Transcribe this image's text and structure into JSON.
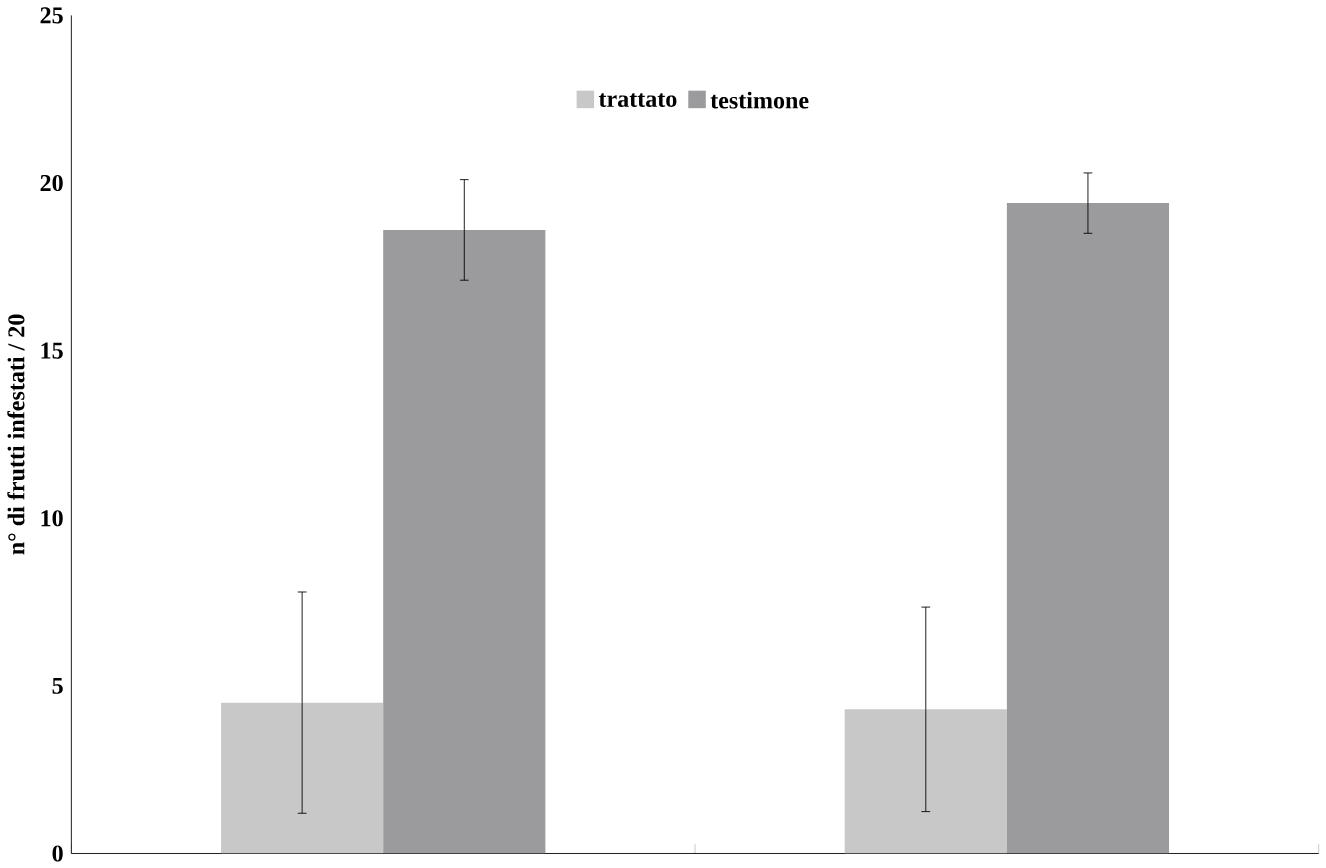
{
  "chart_data": {
    "type": "bar",
    "ylabel": "n° di frutti infestati / 20",
    "categories": [
      null,
      null
    ],
    "series": [
      {
        "name": "trattato",
        "color": "#c8c8c8",
        "values": [
          4.5,
          4.3
        ],
        "errors": [
          3.3,
          3.05
        ]
      },
      {
        "name": "testimone",
        "color": "#9b9b9d",
        "values": [
          18.6,
          19.4
        ],
        "errors": [
          1.5,
          0.9
        ]
      }
    ],
    "ylim": [
      0,
      25
    ],
    "yticks": [
      0,
      5,
      10,
      15,
      20,
      25
    ],
    "legend": "top",
    "grid": false
  }
}
